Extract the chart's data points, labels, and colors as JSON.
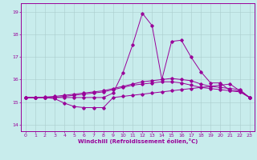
{
  "xlabel": "Windchill (Refroidissement éolien,°C)",
  "background_color": "#c8ecec",
  "line_color": "#990099",
  "grid_color": "#aacccc",
  "ylim": [
    13.7,
    19.4
  ],
  "xlim": [
    -0.5,
    23.5
  ],
  "yticks": [
    14,
    15,
    16,
    17,
    18,
    19
  ],
  "xticks": [
    0,
    1,
    2,
    3,
    4,
    5,
    6,
    7,
    8,
    9,
    10,
    11,
    12,
    13,
    14,
    15,
    16,
    17,
    18,
    19,
    20,
    21,
    22,
    23
  ],
  "series": {
    "line_temp": [
      15.2,
      15.2,
      15.2,
      15.15,
      14.95,
      14.8,
      14.75,
      14.75,
      14.75,
      15.2,
      15.25,
      15.3,
      15.35,
      15.4,
      15.45,
      15.5,
      15.55,
      15.6,
      15.65,
      15.7,
      15.75,
      15.8,
      15.5,
      15.2
    ],
    "line_avg1": [
      15.2,
      15.2,
      15.2,
      15.2,
      15.25,
      15.3,
      15.35,
      15.4,
      15.45,
      15.55,
      15.65,
      15.75,
      15.8,
      15.85,
      15.9,
      15.9,
      15.85,
      15.75,
      15.65,
      15.6,
      15.55,
      15.5,
      15.45,
      15.2
    ],
    "line_avg2": [
      15.2,
      15.2,
      15.22,
      15.25,
      15.3,
      15.35,
      15.4,
      15.45,
      15.5,
      15.6,
      15.7,
      15.8,
      15.9,
      15.95,
      16.0,
      16.05,
      16.0,
      15.95,
      15.8,
      15.7,
      15.65,
      15.6,
      15.55,
      15.2
    ],
    "line_wc": [
      15.2,
      15.2,
      15.2,
      15.2,
      15.2,
      15.2,
      15.2,
      15.2,
      15.2,
      15.4,
      16.3,
      17.55,
      18.95,
      18.4,
      16.0,
      17.7,
      17.75,
      17.0,
      16.35,
      15.85,
      15.85,
      15.5,
      15.5,
      15.2
    ]
  }
}
